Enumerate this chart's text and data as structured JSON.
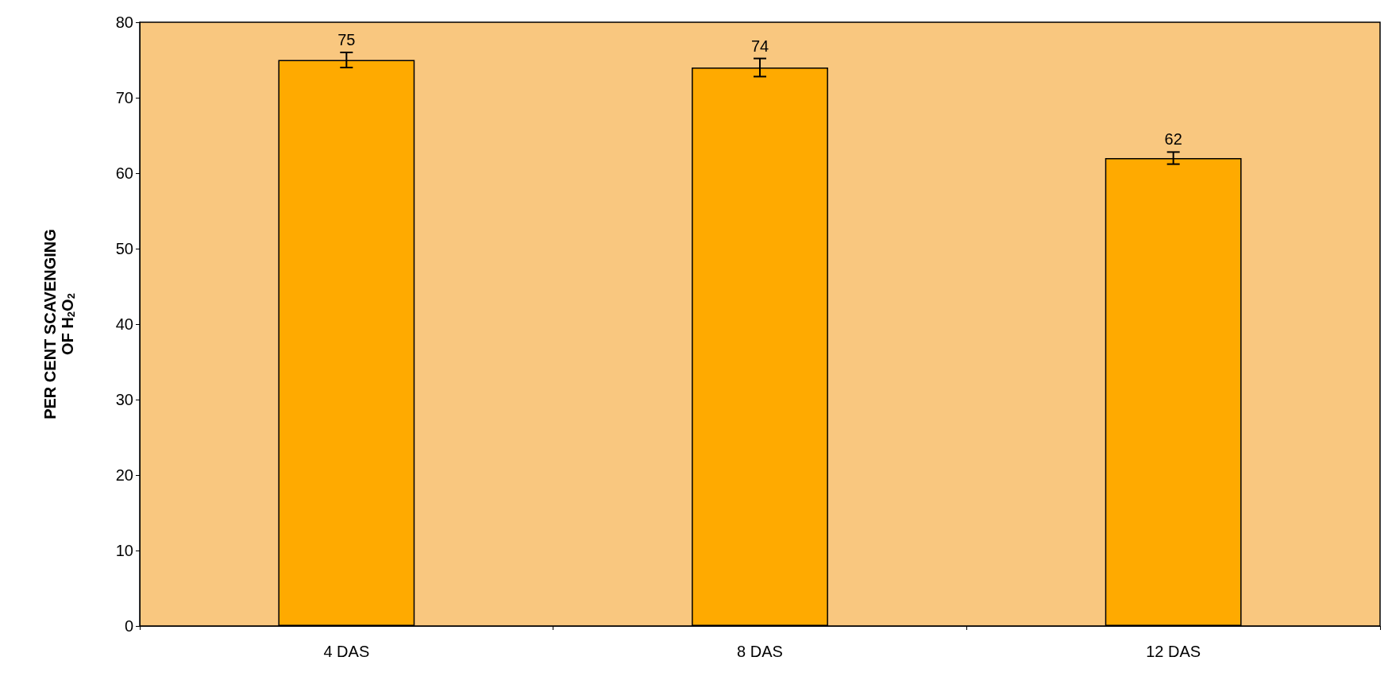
{
  "chart_data": {
    "type": "bar",
    "ylabel": "PER CENT SCAVENGING\nOF H$_{2}$O$_{2}$",
    "categories": [
      "4 DAS",
      "8 DAS",
      "12 DAS"
    ],
    "series": [
      {
        "color": "#ffaa00",
        "values": [
          75,
          74,
          62
        ],
        "errors": [
          1,
          1.2,
          0.8
        ]
      }
    ],
    "ylim": [
      0,
      80
    ],
    "yticks": [
      0,
      10,
      20,
      30,
      40,
      50,
      60,
      70,
      80
    ],
    "data_labels": true,
    "grid": false
  }
}
